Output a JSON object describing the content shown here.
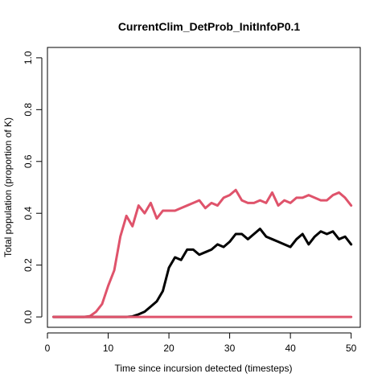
{
  "chart_data": {
    "type": "line",
    "title": "CurrentClim_DetProb_InitInfoP0.1",
    "xlabel": "Time since incursion detected (timesteps)",
    "ylabel": "Total population (proportion of K)",
    "xlim": [
      0,
      51.5
    ],
    "ylim": [
      -0.04,
      1.04
    ],
    "xticks": [
      0,
      10,
      20,
      30,
      40,
      50
    ],
    "yticks": [
      0.0,
      0.2,
      0.4,
      0.6,
      0.8,
      1.0
    ],
    "xtick_labels": [
      "0",
      "10",
      "20",
      "30",
      "40",
      "50"
    ],
    "ytick_labels": [
      "0.0",
      "0.2",
      "0.4",
      "0.6",
      "0.8",
      "1.0"
    ],
    "grid": false,
    "x": [
      1,
      2,
      3,
      4,
      5,
      6,
      7,
      8,
      9,
      10,
      11,
      12,
      13,
      14,
      15,
      16,
      17,
      18,
      19,
      20,
      21,
      22,
      23,
      24,
      25,
      26,
      27,
      28,
      29,
      30,
      31,
      32,
      33,
      34,
      35,
      36,
      37,
      38,
      39,
      40,
      41,
      42,
      43,
      44,
      45,
      46,
      47,
      48,
      49,
      50
    ],
    "series": [
      {
        "color": "#DF536B",
        "values": [
          0,
          0,
          0,
          0,
          0,
          0,
          0.003,
          0.02,
          0.05,
          0.12,
          0.18,
          0.31,
          0.39,
          0.35,
          0.43,
          0.4,
          0.44,
          0.38,
          0.41,
          0.41,
          0.41,
          0.42,
          0.43,
          0.44,
          0.45,
          0.42,
          0.44,
          0.43,
          0.46,
          0.47,
          0.49,
          0.45,
          0.44,
          0.44,
          0.45,
          0.44,
          0.48,
          0.43,
          0.45,
          0.44,
          0.46,
          0.46,
          0.47,
          0.46,
          0.45,
          0.45,
          0.47,
          0.48,
          0.46,
          0.43
        ]
      },
      {
        "color": "#000000",
        "values": [
          0,
          0,
          0,
          0,
          0,
          0,
          0,
          0,
          0,
          0,
          0,
          0,
          0,
          0.002,
          0.01,
          0.02,
          0.04,
          0.06,
          0.1,
          0.19,
          0.23,
          0.22,
          0.26,
          0.26,
          0.24,
          0.25,
          0.26,
          0.28,
          0.27,
          0.29,
          0.32,
          0.32,
          0.3,
          0.32,
          0.34,
          0.31,
          0.3,
          0.29,
          0.28,
          0.27,
          0.3,
          0.32,
          0.28,
          0.31,
          0.33,
          0.32,
          0.33,
          0.3,
          0.31,
          0.28
        ]
      },
      {
        "color": "#DF536B",
        "values": [
          0,
          0,
          0,
          0,
          0,
          0,
          0,
          0,
          0,
          0,
          0,
          0,
          0,
          0,
          0,
          0,
          0,
          0,
          0,
          0,
          0,
          0,
          0,
          0,
          0,
          0,
          0,
          0,
          0,
          0,
          0,
          0,
          0,
          0,
          0,
          0,
          0,
          0,
          0,
          0,
          0,
          0,
          0,
          0,
          0,
          0,
          0,
          0,
          0,
          0
        ]
      }
    ]
  }
}
